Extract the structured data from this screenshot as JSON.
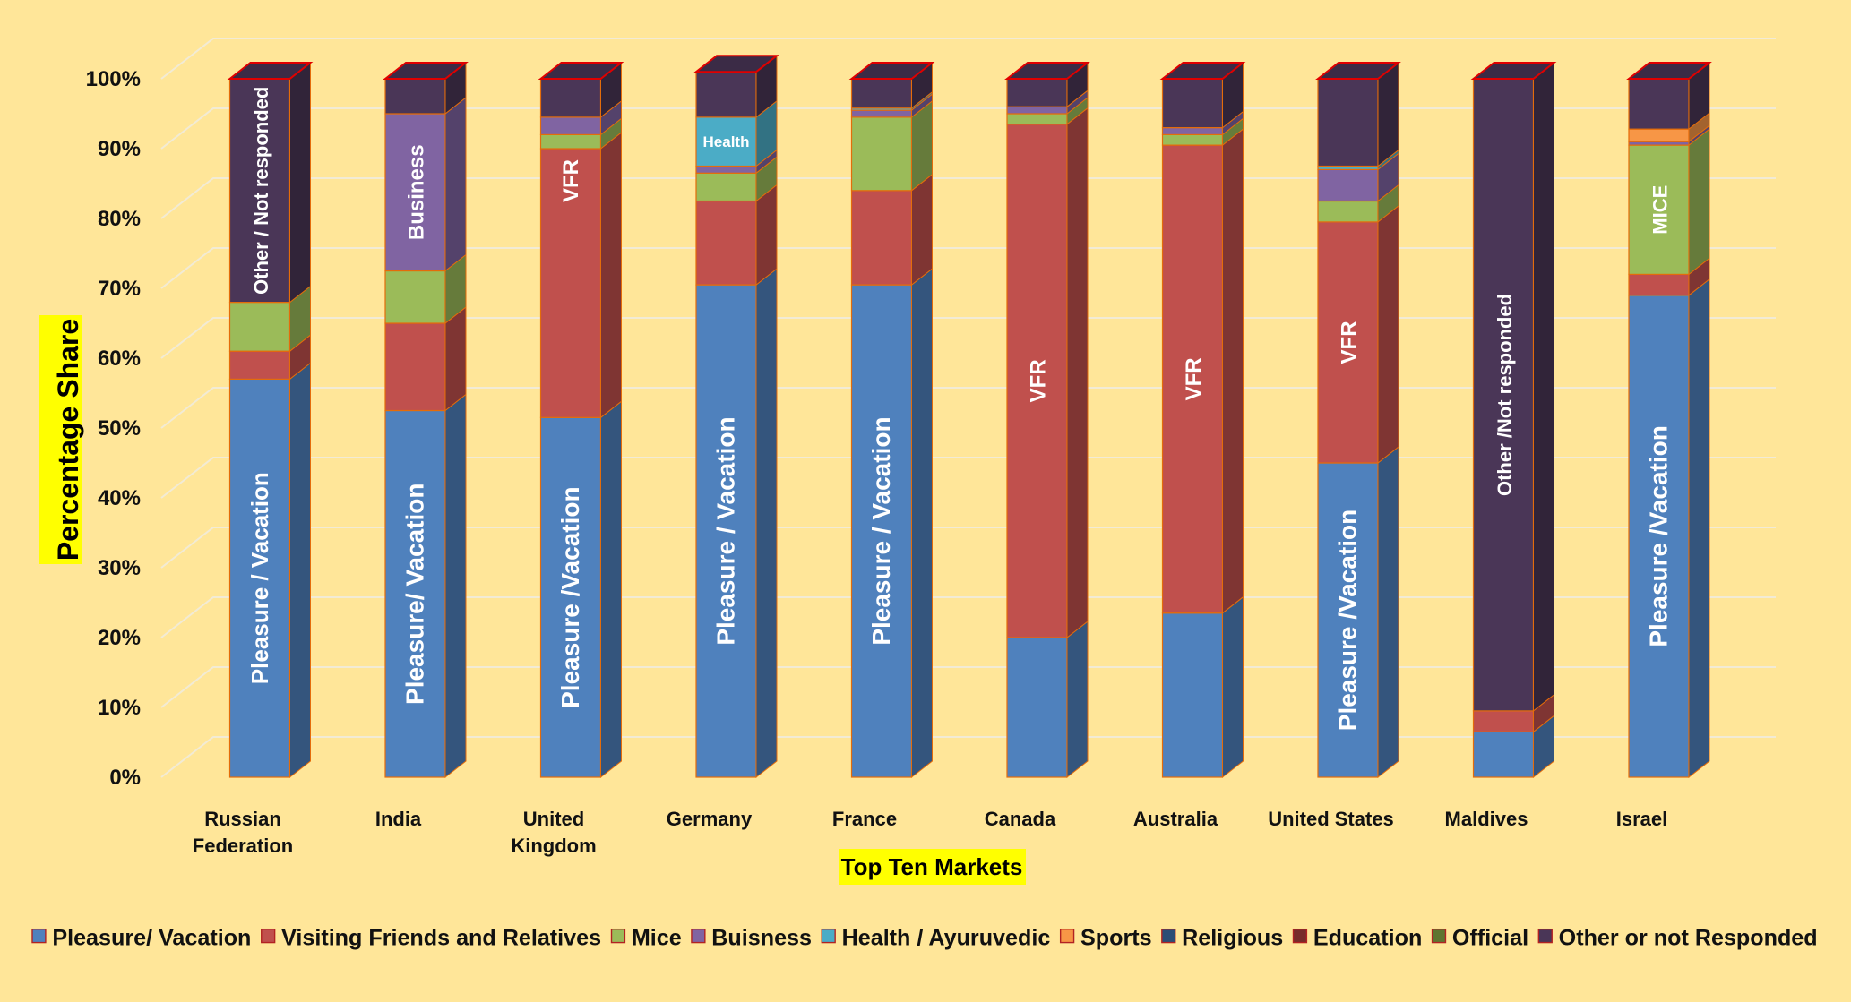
{
  "chart_data": {
    "type": "bar",
    "stacked": true,
    "three_d": true,
    "title": "",
    "xlabel": "Top Ten Markets",
    "ylabel": "Percentage Share",
    "ylim": [
      0,
      100
    ],
    "y_ticks": [
      0,
      10,
      20,
      30,
      40,
      50,
      60,
      70,
      80,
      90,
      100
    ],
    "y_tick_suffix": "%",
    "grid": true,
    "legend_position": "bottom",
    "categories": [
      [
        "Russian",
        "Federation"
      ],
      [
        "India"
      ],
      [
        "United",
        "Kingdom"
      ],
      [
        "Germany"
      ],
      [
        "France"
      ],
      [
        "Canada"
      ],
      [
        "Australia"
      ],
      [
        "United States"
      ],
      [
        "Maldives"
      ],
      [
        "Israel"
      ]
    ],
    "series": [
      {
        "name": "Pleasure/ Vacation",
        "color": "#4F81BD",
        "values": [
          57,
          52.5,
          51.5,
          70.5,
          70.5,
          20,
          23.5,
          45,
          6.5,
          69
        ]
      },
      {
        "name": "Visiting Friends and Relatives",
        "color": "#C0504D",
        "values": [
          4,
          12.5,
          38.5,
          12,
          13.5,
          73.5,
          67,
          34.5,
          3,
          3
        ]
      },
      {
        "name": "Mice",
        "color": "#9BBB59",
        "values": [
          7,
          7.5,
          2,
          4,
          10.5,
          1.5,
          1.5,
          3,
          0,
          18.5
        ]
      },
      {
        "name": "Buisness",
        "color": "#8064A2",
        "values": [
          0,
          22.5,
          2.5,
          1,
          1,
          1,
          1,
          4.5,
          0,
          0.5
        ]
      },
      {
        "name": "Health / Ayuruvedic",
        "color": "#4BACC6",
        "values": [
          0,
          0,
          0,
          7,
          0.3,
          0,
          0,
          0.5,
          0,
          0
        ]
      },
      {
        "name": "Sports",
        "color": "#F79646",
        "values": [
          0,
          0,
          0,
          0,
          0,
          0,
          0,
          0,
          0,
          1.8
        ]
      },
      {
        "name": "Religious",
        "color": "#2C4D75",
        "values": [
          0,
          0,
          0,
          0,
          0,
          0,
          0,
          0,
          0,
          0
        ]
      },
      {
        "name": "Education",
        "color": "#772C2A",
        "values": [
          0,
          0,
          0,
          0,
          0,
          0,
          0,
          0,
          0,
          0
        ]
      },
      {
        "name": "Official",
        "color": "#5F7530",
        "values": [
          0,
          0,
          0,
          0,
          0,
          0,
          0,
          0,
          0,
          0
        ]
      },
      {
        "name": "Other or not Responded",
        "color": "#4A3657",
        "values": [
          32,
          5,
          5.5,
          6.5,
          4.2,
          4,
          7,
          12.5,
          90.5,
          7.2
        ]
      }
    ],
    "annotations": [
      {
        "category": 0,
        "series": 0,
        "text": "Pleasure / Vacation",
        "size": 26
      },
      {
        "category": 0,
        "series": 9,
        "text": "Other / Not responded",
        "size": 22
      },
      {
        "category": 1,
        "series": 0,
        "text": "Pleasure/ Vacation",
        "size": 28
      },
      {
        "category": 1,
        "series": 3,
        "text": "Business",
        "size": 24
      },
      {
        "category": 2,
        "series": 0,
        "text": "Pleasure /Vacation",
        "size": 28
      },
      {
        "category": 2,
        "series": 1,
        "text": "VFR",
        "size": 24,
        "anchor": "top"
      },
      {
        "category": 3,
        "series": 0,
        "text": "Pleasure / Vacation",
        "size": 28
      },
      {
        "category": 3,
        "series": 4,
        "text": "Health",
        "size": 17,
        "horizontal": true
      },
      {
        "category": 4,
        "series": 0,
        "text": "Pleasure / Vacation",
        "size": 28
      },
      {
        "category": 5,
        "series": 1,
        "text": "VFR",
        "size": 24
      },
      {
        "category": 6,
        "series": 1,
        "text": "VFR",
        "size": 24
      },
      {
        "category": 7,
        "series": 0,
        "text": "Pleasure /Vacation",
        "size": 28
      },
      {
        "category": 7,
        "series": 1,
        "text": "VFR",
        "size": 24
      },
      {
        "category": 8,
        "series": 9,
        "text": "Other /Not responded",
        "size": 22
      },
      {
        "category": 9,
        "series": 0,
        "text": "Pleasure /Vacation",
        "size": 28
      },
      {
        "category": 9,
        "series": 2,
        "text": "MICE",
        "size": 22
      }
    ]
  }
}
